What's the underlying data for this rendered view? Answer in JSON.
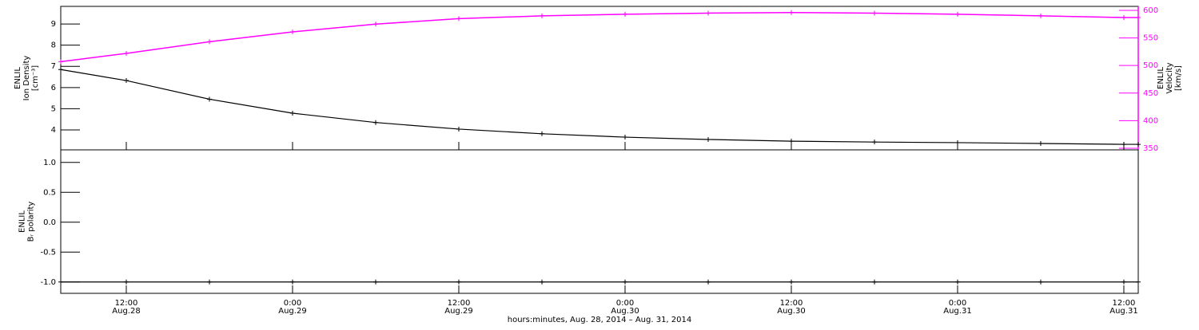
{
  "chart_data": [
    {
      "type": "line",
      "ylabel": [
        "ENLIL",
        "Ion Density",
        "[cm⁻³]"
      ],
      "y2label": [
        "ENLIL",
        "Velocity",
        "[km/s]"
      ],
      "x": [
        7.27,
        12,
        18,
        24,
        30,
        36,
        42,
        48,
        54,
        60,
        66,
        72,
        78,
        84,
        85.04
      ],
      "xlim": [
        7.27,
        85.04
      ],
      "ylim": [
        3.06,
        9.83
      ],
      "yticks": [
        4,
        5,
        6,
        7,
        8,
        9
      ],
      "y2lim": [
        347.1,
        607.2
      ],
      "y2ticks": [
        350,
        400,
        450,
        500,
        550,
        600
      ],
      "y2color": "#ff00ff",
      "series": [
        {
          "name": "Ion Density",
          "color": "#000000",
          "values": [
            6.85,
            6.33,
            5.45,
            4.79,
            4.35,
            4.04,
            3.82,
            3.66,
            3.55,
            3.47,
            3.43,
            3.4,
            3.36,
            3.32,
            3.32
          ]
        },
        {
          "name": "Velocity",
          "color": "#ff00ff",
          "axis": "y2",
          "values": [
            507,
            522,
            543,
            561,
            575,
            585,
            590,
            593,
            595,
            596,
            595,
            593,
            590,
            587,
            587
          ]
        }
      ]
    },
    {
      "type": "line",
      "ylabel": [
        "ENLIL",
        "Bᵣ polarity"
      ],
      "xlabel": "hours:minutes, Aug. 28, 2014 – Aug. 31, 2014",
      "x": [
        7.27,
        12,
        18,
        24,
        30,
        36,
        42,
        48,
        54,
        60,
        66,
        72,
        78,
        84,
        85.04
      ],
      "xlim": [
        7.27,
        85.04
      ],
      "xticks": [
        {
          "value": 12,
          "label": "12:00",
          "date": "Aug.28"
        },
        {
          "value": 24,
          "label": "0:00",
          "date": "Aug.29"
        },
        {
          "value": 36,
          "label": "12:00",
          "date": "Aug.29"
        },
        {
          "value": 48,
          "label": "0:00",
          "date": "Aug.30"
        },
        {
          "value": 60,
          "label": "12:00",
          "date": "Aug.30"
        },
        {
          "value": 72,
          "label": "0:00",
          "date": "Aug.31"
        },
        {
          "value": 84,
          "label": "12:00",
          "date": "Aug.31"
        }
      ],
      "ylim": [
        -1.19,
        1.21
      ],
      "yticks": [
        {
          "value": -1,
          "label": "-1.0"
        },
        {
          "value": -0.5,
          "label": "-0.5"
        },
        {
          "value": 0,
          "label": "0.0"
        },
        {
          "value": 0.5,
          "label": "0.5"
        },
        {
          "value": 1,
          "label": "1.0"
        }
      ],
      "series": [
        {
          "name": "Br polarity",
          "color": "#000000",
          "values": [
            -1,
            -1,
            -1,
            -1,
            -1,
            -1,
            -1,
            -1,
            -1,
            -1,
            -1,
            -1,
            -1,
            -1,
            -1
          ]
        }
      ]
    }
  ]
}
